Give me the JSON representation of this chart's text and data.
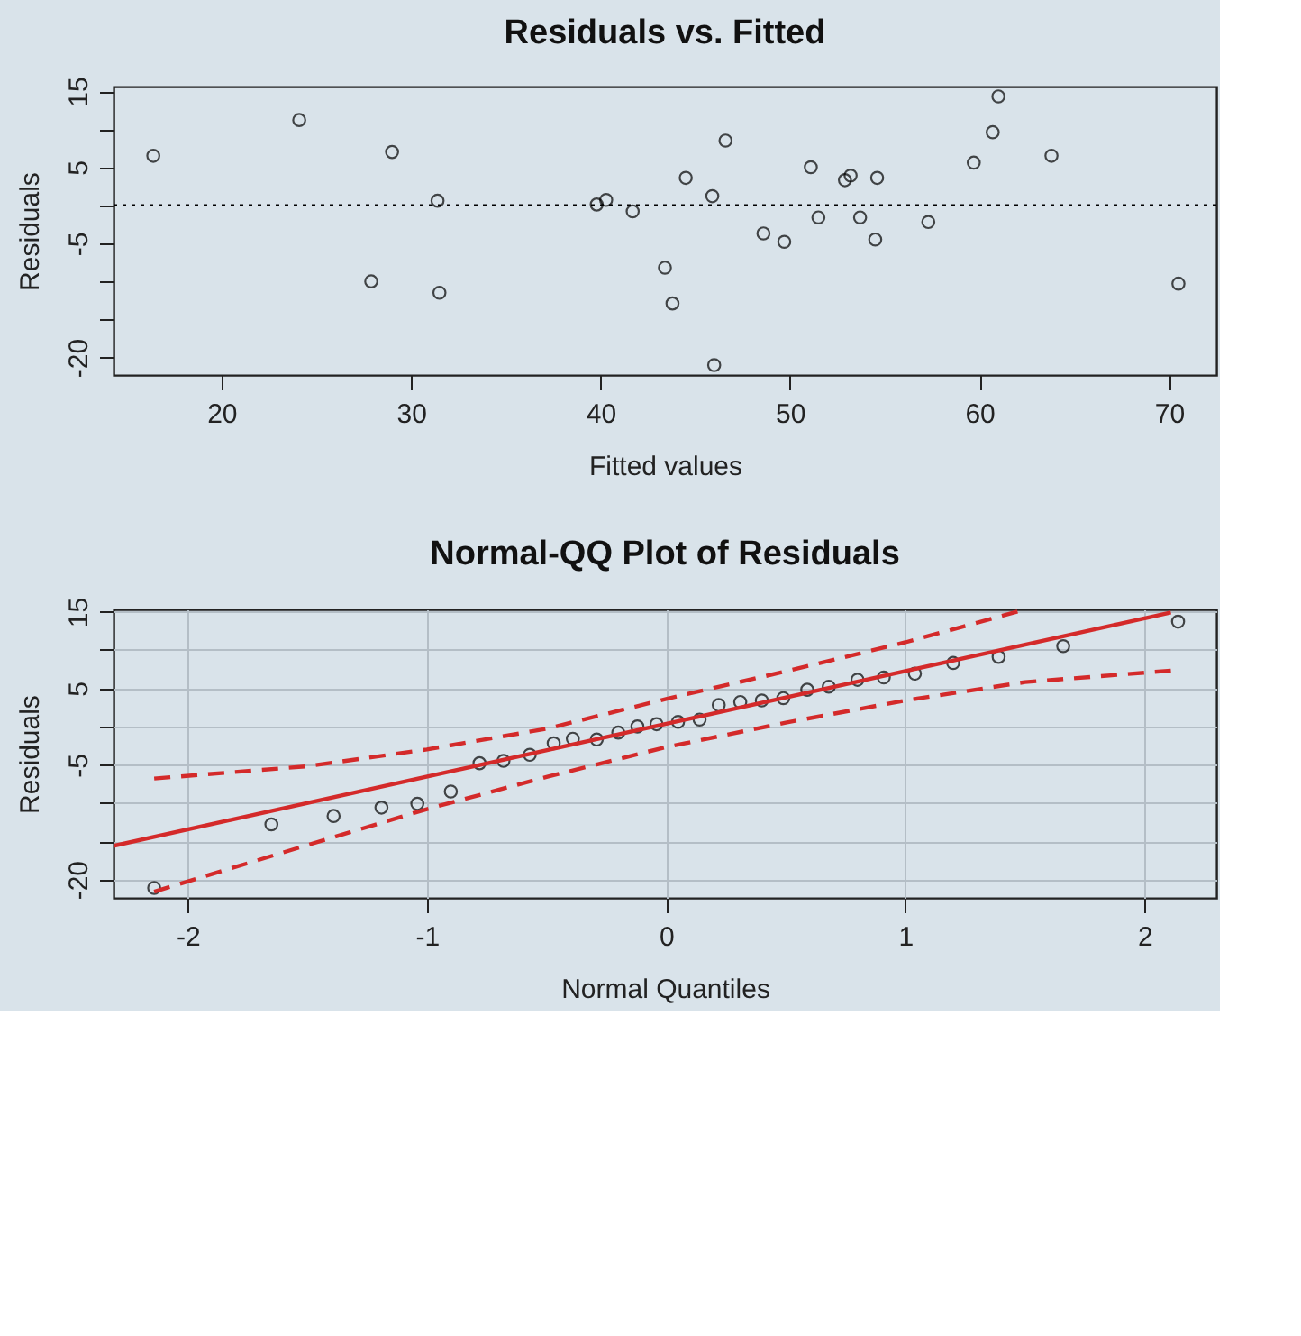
{
  "chart_data": [
    {
      "type": "scatter",
      "title": "Residuals vs. Fitted",
      "xlabel": "Fitted values",
      "ylabel": "Residuals",
      "marker": "circle",
      "grid": false,
      "x": [
        16.4,
        24.1,
        29.0,
        27.9,
        31.4,
        31.5,
        39.8,
        40.3,
        41.7,
        43.4,
        43.8,
        46.0,
        44.5,
        45.9,
        46.6,
        48.6,
        49.7,
        51.1,
        51.5,
        52.9,
        53.2,
        53.7,
        54.6,
        54.5,
        57.3,
        59.7,
        60.7,
        61.0,
        63.8,
        70.5
      ],
      "values": [
        6.5,
        11.2,
        7.0,
        -10.0,
        0.6,
        -11.5,
        0.1,
        0.7,
        -0.8,
        -8.2,
        -12.9,
        -21.0,
        3.6,
        1.2,
        8.5,
        -3.7,
        -4.8,
        5.0,
        -1.6,
        3.3,
        3.9,
        -1.6,
        3.6,
        -4.5,
        -2.2,
        5.6,
        9.6,
        14.3,
        6.5,
        -10.3
      ],
      "color": "#000000",
      "xlim": [
        14.3,
        72.5
      ],
      "ylim": [
        -22.3,
        15.6
      ],
      "xticks": [
        20,
        30,
        40,
        50,
        60,
        70
      ],
      "yticks": [
        {
          "value": -20,
          "label": "-20"
        },
        {
          "value": -15,
          "label": null
        },
        {
          "value": -10,
          "label": null
        },
        -5,
        {
          "value": 0,
          "label": null
        },
        5,
        {
          "value": 10,
          "label": null
        },
        15
      ],
      "ref_lines": [
        {
          "axis": "y",
          "value": 0,
          "label": null,
          "color": "#000000",
          "line_style": "dotted"
        }
      ]
    },
    {
      "type": "scatter",
      "title": "Normal-QQ Plot of Residuals",
      "xlabel": "Normal Quantiles",
      "ylabel": "Residuals",
      "grid": true,
      "series": [
        {
          "color": "#000000",
          "marker": "circle",
          "x": [
            -2.14,
            -1.65,
            -1.39,
            -1.19,
            -1.04,
            -0.9,
            -0.78,
            -0.68,
            -0.57,
            -0.47,
            -0.39,
            -0.29,
            -0.2,
            -0.12,
            -0.04,
            0.05,
            0.14,
            0.22,
            0.31,
            0.4,
            0.49,
            0.59,
            0.68,
            0.8,
            0.91,
            1.04,
            1.2,
            1.39,
            1.66,
            2.14
          ],
          "values": [
            -21.1,
            -12.8,
            -11.7,
            -10.6,
            -10.1,
            -8.5,
            -4.8,
            -4.5,
            -3.7,
            -2.2,
            -1.6,
            -1.7,
            -0.8,
            0.0,
            0.3,
            0.6,
            0.9,
            2.8,
            3.2,
            3.4,
            3.7,
            4.8,
            5.2,
            6.1,
            6.4,
            6.9,
            8.3,
            9.1,
            10.5,
            13.7
          ]
        },
        {
          "type": "line",
          "color": "#d42a2a",
          "line_style": "solid",
          "x": [
            -2.31,
            2.11
          ],
          "values": [
            -15.6,
            14.9
          ]
        },
        {
          "type": "line",
          "color": "#d42a2a",
          "line_style": "dashed",
          "x": [
            -2.14,
            -1.5,
            -1.0,
            -0.5,
            0.0,
            0.5,
            1.0,
            1.48
          ],
          "values": [
            -6.8,
            -5.2,
            -3.0,
            -0.3,
            3.6,
            7.2,
            11.0,
            15.1
          ]
        },
        {
          "type": "line",
          "color": "#d42a2a",
          "line_style": "dashed",
          "x": [
            -2.14,
            -1.5,
            -1.0,
            -0.5,
            0.0,
            0.5,
            1.0,
            1.5,
            2.11
          ],
          "values": [
            -21.6,
            -15.5,
            -10.8,
            -6.6,
            -2.7,
            0.5,
            3.4,
            5.8,
            7.3
          ]
        }
      ],
      "xlim": [
        -2.31,
        2.3
      ],
      "ylim": [
        -22.4,
        15.3
      ],
      "xticks": [
        -2,
        -1,
        0,
        1,
        2
      ],
      "yticks": [
        {
          "value": -20,
          "label": "-20"
        },
        {
          "value": -15,
          "label": null
        },
        {
          "value": -10,
          "label": null
        },
        -5,
        {
          "value": 0,
          "label": null
        },
        5,
        {
          "value": 10,
          "label": null
        },
        15
      ]
    }
  ]
}
